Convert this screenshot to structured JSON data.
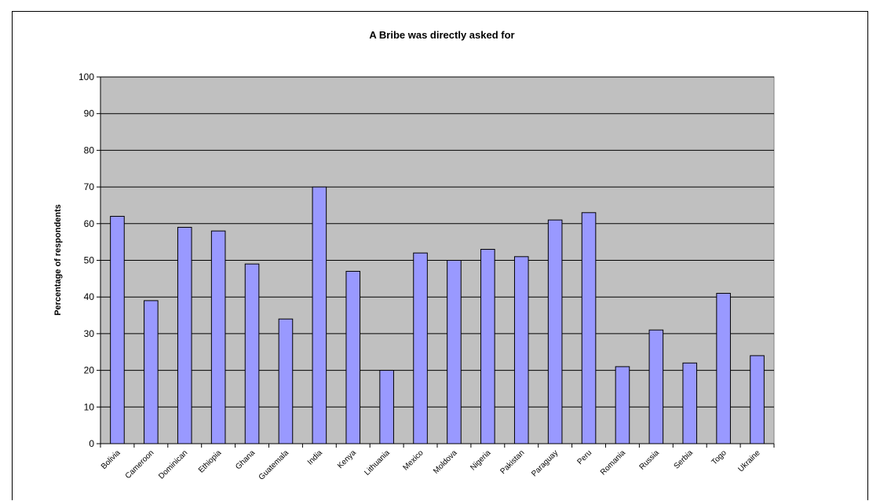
{
  "chart_data": {
    "type": "bar",
    "title": "A Bribe was directly asked for",
    "xlabel": "",
    "ylabel": "Percentage of respondents",
    "ylim": [
      0,
      100
    ],
    "yticks": [
      0,
      10,
      20,
      30,
      40,
      50,
      60,
      70,
      80,
      90,
      100
    ],
    "grid": true,
    "legend": "none",
    "categories": [
      "Bolivia",
      "Cameroon",
      "Dominican",
      "Ethiopia",
      "Ghana",
      "Guatemala",
      "India",
      "Kenya",
      "Lithuania",
      "Mexico",
      "Moldova",
      "Nigeria",
      "Pakistan",
      "Paraguay",
      "Peru",
      "Romania",
      "Russia",
      "Serbia",
      "Togo",
      "Ukraine"
    ],
    "values": [
      62,
      39,
      59,
      58,
      49,
      34,
      70,
      47,
      20,
      52,
      50,
      53,
      51,
      61,
      63,
      21,
      31,
      22,
      41,
      24
    ],
    "colors": {
      "bar_fill": "#9999ff",
      "bar_stroke": "#000000",
      "plot_background": "#c0c0c0",
      "gridline": "#000000"
    }
  }
}
